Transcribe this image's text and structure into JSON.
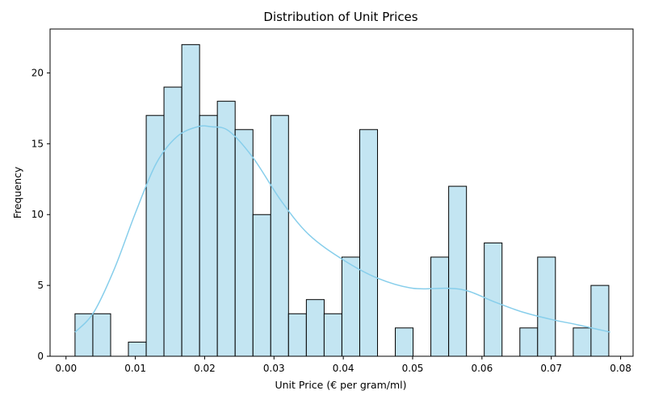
{
  "chart_data": {
    "type": "bar",
    "subtype": "histogram-with-kde",
    "title": "Distribution of Unit Prices",
    "xlabel": "Unit Price (€ per gram/ml)",
    "ylabel": "Frequency",
    "xlim": [
      -0.0023,
      0.0818
    ],
    "ylim": [
      0,
      23.1
    ],
    "xticks": [
      0.0,
      0.01,
      0.02,
      0.03,
      0.04,
      0.05,
      0.06,
      0.07,
      0.08
    ],
    "xtick_labels": [
      "0.00",
      "0.01",
      "0.02",
      "0.03",
      "0.04",
      "0.05",
      "0.06",
      "0.07",
      "0.08"
    ],
    "yticks": [
      0,
      5,
      10,
      15,
      20
    ],
    "ytick_labels": [
      "0",
      "5",
      "10",
      "15",
      "20"
    ],
    "bin_start": 0.0013,
    "bin_width": 0.002567,
    "bins": [
      {
        "x0": 0.0013,
        "count": 3
      },
      {
        "x0": 0.00387,
        "count": 3
      },
      {
        "x0": 0.00643,
        "count": 0
      },
      {
        "x0": 0.009,
        "count": 1
      },
      {
        "x0": 0.01157,
        "count": 17
      },
      {
        "x0": 0.01413,
        "count": 19
      },
      {
        "x0": 0.0167,
        "count": 22
      },
      {
        "x0": 0.01927,
        "count": 17
      },
      {
        "x0": 0.02183,
        "count": 18
      },
      {
        "x0": 0.0244,
        "count": 16
      },
      {
        "x0": 0.02697,
        "count": 10
      },
      {
        "x0": 0.02953,
        "count": 17
      },
      {
        "x0": 0.0321,
        "count": 3
      },
      {
        "x0": 0.03467,
        "count": 4
      },
      {
        "x0": 0.03723,
        "count": 3
      },
      {
        "x0": 0.0398,
        "count": 7
      },
      {
        "x0": 0.04237,
        "count": 16
      },
      {
        "x0": 0.04493,
        "count": 0
      },
      {
        "x0": 0.0475,
        "count": 2
      },
      {
        "x0": 0.05007,
        "count": 0
      },
      {
        "x0": 0.05263,
        "count": 7
      },
      {
        "x0": 0.0552,
        "count": 12
      },
      {
        "x0": 0.05777,
        "count": 0
      },
      {
        "x0": 0.06033,
        "count": 8
      },
      {
        "x0": 0.0629,
        "count": 0
      },
      {
        "x0": 0.06547,
        "count": 2
      },
      {
        "x0": 0.06803,
        "count": 7
      },
      {
        "x0": 0.0706,
        "count": 0
      },
      {
        "x0": 0.07317,
        "count": 2
      },
      {
        "x0": 0.07573,
        "count": 5
      }
    ],
    "kde": {
      "x": [
        0.0013,
        0.004,
        0.007,
        0.01,
        0.013,
        0.016,
        0.019,
        0.021,
        0.0235,
        0.027,
        0.031,
        0.035,
        0.04,
        0.045,
        0.05,
        0.055,
        0.058,
        0.062,
        0.066,
        0.07,
        0.074,
        0.0785
      ],
      "y": [
        1.7,
        3.1,
        6.2,
        10.1,
        13.6,
        15.5,
        16.2,
        16.2,
        15.9,
        14.0,
        11.0,
        8.6,
        6.8,
        5.5,
        4.8,
        4.8,
        4.6,
        3.8,
        3.1,
        2.6,
        2.2,
        1.7
      ]
    },
    "legend": "none",
    "grid": false,
    "colors": {
      "bar_fill": "#c3e5f2",
      "bar_edge": "#000000",
      "kde_line": "#87ceeb",
      "axes": "#000000",
      "background": "#ffffff"
    }
  }
}
